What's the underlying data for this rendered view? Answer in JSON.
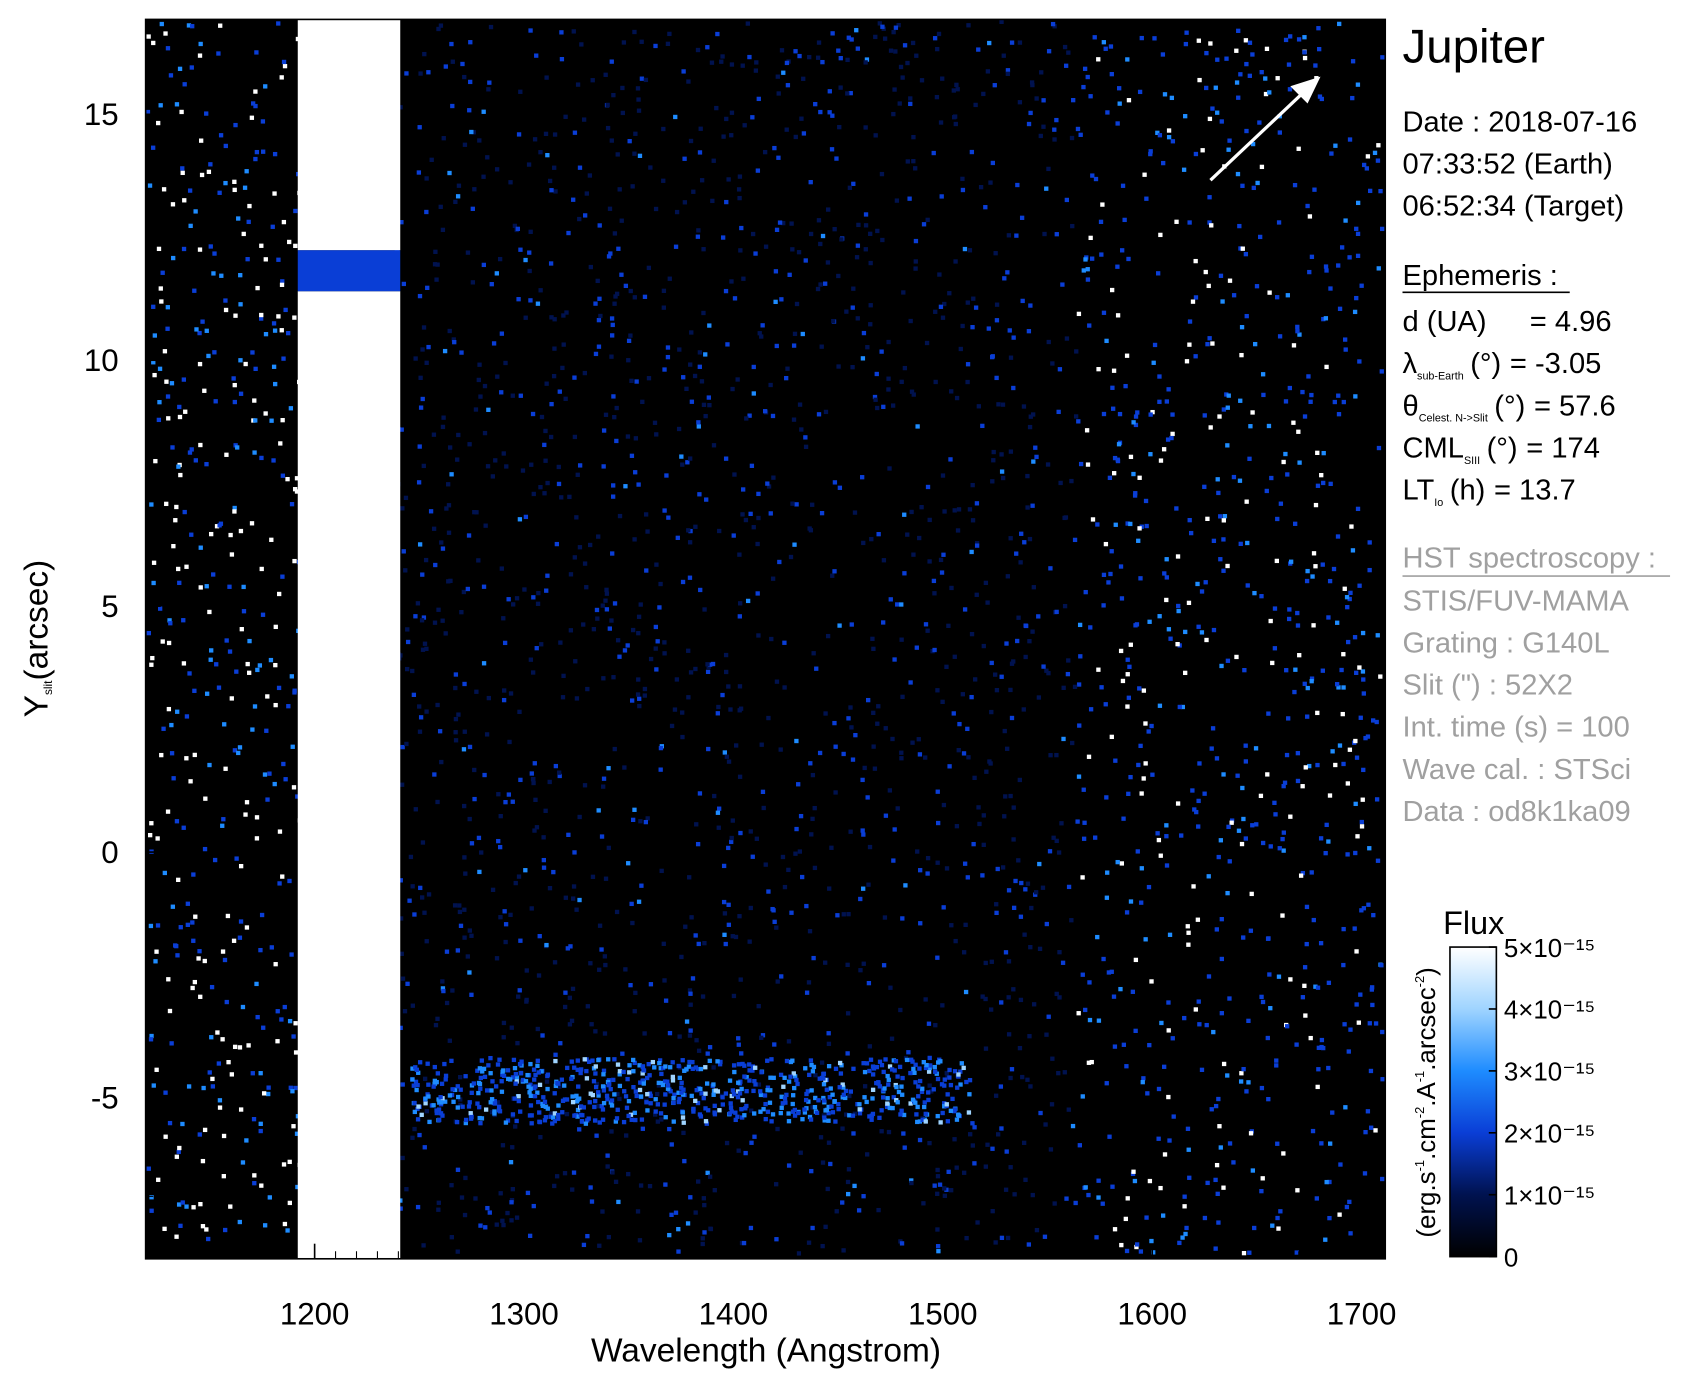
{
  "chart_data": {
    "type": "spectral-image",
    "xlabel": "Wavelength (Angstrom)",
    "ylabel": {
      "symbol": "Y",
      "sub": "slit",
      "unit": "(arcsec)"
    },
    "xlim": [
      1119.3,
      1711.3
    ],
    "ylim": [
      -8.27,
      16.93
    ],
    "xticks": [
      1200,
      1300,
      1400,
      1500,
      1600,
      1700
    ],
    "yticks": [
      -5,
      0,
      5,
      10,
      15
    ],
    "xminor": 10,
    "yminor": 1,
    "colormap": [
      "#000000",
      "#00124f",
      "#0a3ed6",
      "#1e8cff",
      "#9fd4ff",
      "#ffffff"
    ],
    "colorbar": {
      "title": "Flux",
      "label": [
        "(erg.s",
        "-1",
        ".cm",
        "-2",
        ".A",
        "-1",
        ".arcsec",
        "-2",
        ")"
      ],
      "lim": [
        0,
        5e-15
      ],
      "ticks": [
        {
          "value": 0,
          "label": "0"
        },
        {
          "value": 1e-15,
          "label": "1×10⁻¹⁵"
        },
        {
          "value": 2e-15,
          "label": "2×10⁻¹⁵"
        },
        {
          "value": 3e-15,
          "label": "3×10⁻¹⁵"
        },
        {
          "value": 4e-15,
          "label": "4×10⁻¹⁵"
        },
        {
          "value": 5e-15,
          "label": "5×10⁻¹⁵"
        }
      ]
    },
    "info": {
      "title": "Jupiter",
      "date": [
        "Date : 2018-07-16",
        "07:33:52 (Earth)",
        "06:52:34 (Target)"
      ],
      "ephemeris_title": "Ephemeris :",
      "ephemeris": [
        {
          "label": "d (UA)",
          "value": "= 4.96"
        },
        {
          "symbol": "λ",
          "sub": "sub-Earth",
          "unit": "(°)",
          "value": "= -3.05"
        },
        {
          "symbol": "θ",
          "sub": "Celest. N->Slit",
          "unit": "(°)",
          "value": "= 57.6"
        },
        {
          "symbol": "CML",
          "sub": "SIII",
          "unit": "(°)",
          "value": "= 174"
        },
        {
          "symbol": "LT",
          "sub": "Io",
          "unit": "(h)",
          "value": "= 13.7"
        }
      ],
      "hst_title": "HST spectroscopy :",
      "hst": [
        "STIS/FUV-MAMA",
        "Grating : G140L",
        "Slit (\") : 52X2",
        "Int. time (s) = 100",
        "Wave cal. : STSci",
        "Data : od8k1ka09"
      ]
    }
  }
}
